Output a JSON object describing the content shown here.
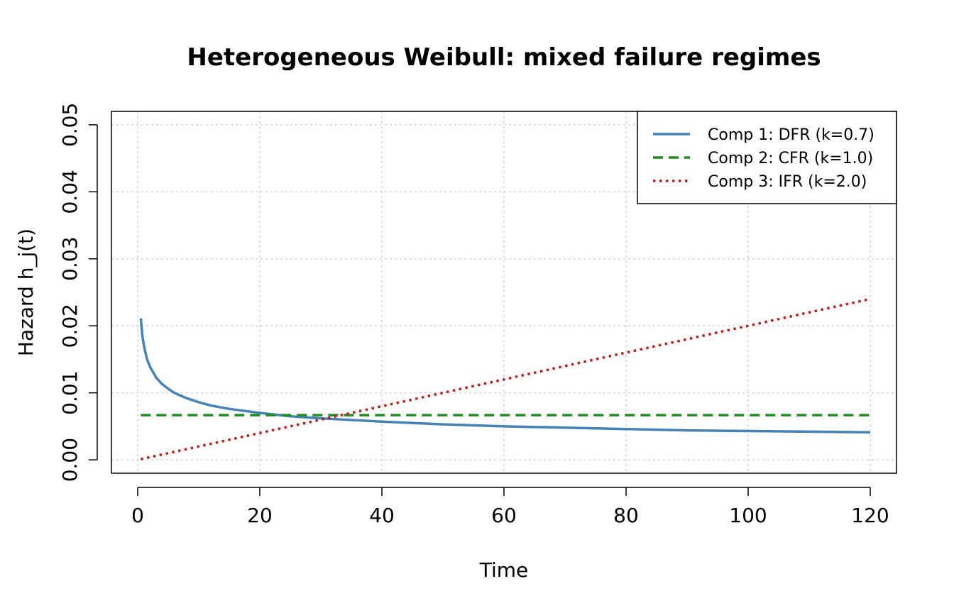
{
  "chart_data": {
    "type": "line",
    "title": "Heterogeneous Weibull: mixed failure regimes",
    "xlabel": "Time",
    "ylabel": "Hazard h_j(t)",
    "xlim": [
      -4.3,
      124.3
    ],
    "ylim": [
      -0.002,
      0.052
    ],
    "xticks": [
      0,
      20,
      40,
      60,
      80,
      100,
      120
    ],
    "xtick_labels": [
      "0",
      "20",
      "40",
      "60",
      "80",
      "100",
      "120"
    ],
    "yticks": [
      0.0,
      0.01,
      0.02,
      0.03,
      0.04,
      0.05
    ],
    "ytick_labels": [
      "0.00",
      "0.01",
      "0.02",
      "0.03",
      "0.04",
      "0.05"
    ],
    "grid": true,
    "legend_position": "top-right",
    "series": [
      {
        "name": "Comp 1: DFR (k=0.7)",
        "color": "#4682b4",
        "style": "solid",
        "x": [
          0.5,
          0.75,
          1,
          1.5,
          2,
          3,
          4,
          5,
          6,
          8,
          10,
          12,
          15,
          20,
          25,
          30,
          40,
          50,
          60,
          70,
          80,
          90,
          100,
          110,
          120
        ],
        "y": [
          0.0211,
          0.0187,
          0.0171,
          0.0151,
          0.0139,
          0.0123,
          0.0113,
          0.0106,
          0.01,
          0.0092,
          0.0086,
          0.0081,
          0.0076,
          0.007,
          0.0065,
          0.0062,
          0.0057,
          0.0053,
          0.005,
          0.0048,
          0.0046,
          0.0044,
          0.0043,
          0.0042,
          0.0041
        ]
      },
      {
        "name": "Comp 2: CFR (k=1.0)",
        "color": "#228b22",
        "style": "dashed",
        "x": [
          0.5,
          120
        ],
        "y": [
          0.00667,
          0.00667
        ]
      },
      {
        "name": "Comp 3: IFR (k=2.0)",
        "color": "#b22222",
        "style": "dotted",
        "x": [
          0.5,
          120
        ],
        "y": [
          0.0001,
          0.024
        ]
      }
    ]
  }
}
